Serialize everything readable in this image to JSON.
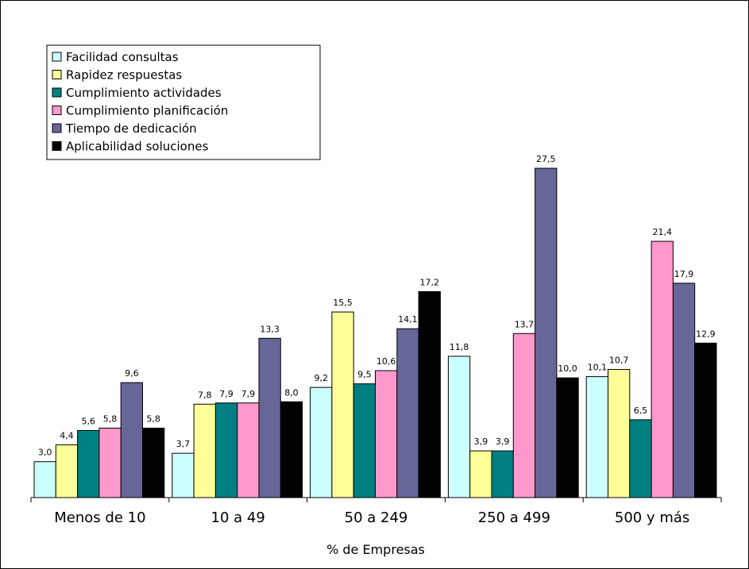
{
  "chart_data": {
    "type": "bar",
    "categories": [
      "Menos de 10",
      "10 a 49",
      "50 a 249",
      "250 a 499",
      "500 y más"
    ],
    "xlabel": "% de Empresas",
    "ylabel": "",
    "title": "",
    "ylim": [
      0,
      30
    ],
    "grid": false,
    "legend_position": "top-left",
    "series": [
      {
        "name": "Facilidad consultas",
        "color": "#ccffff",
        "values": [
          3.0,
          3.7,
          9.2,
          11.8,
          10.1
        ],
        "labels": [
          "3,0",
          "3,7",
          "9,2",
          "11,8",
          "10,1"
        ]
      },
      {
        "name": "Rapidez respuestas",
        "color": "#ffff99",
        "values": [
          4.4,
          7.8,
          15.5,
          3.9,
          10.7
        ],
        "labels": [
          "4,4",
          "7,8",
          "15,5",
          "3,9",
          "10,7"
        ]
      },
      {
        "name": "Cumplimiento actividades",
        "color": "#008080",
        "values": [
          5.6,
          7.9,
          9.5,
          3.9,
          6.5
        ],
        "labels": [
          "5,6",
          "7,9",
          "9,5",
          "3,9",
          "6,5"
        ]
      },
      {
        "name": "Cumplimiento planificación",
        "color": "#ff99cc",
        "values": [
          5.8,
          7.9,
          10.6,
          13.7,
          21.4
        ],
        "labels": [
          "5,8",
          "7,9",
          "10,6",
          "13,7",
          "21,4"
        ]
      },
      {
        "name": "Tiempo de dedicación",
        "color": "#666699",
        "values": [
          9.6,
          13.3,
          14.1,
          27.5,
          17.9
        ],
        "labels": [
          "9,6",
          "13,3",
          "14,1",
          "27,5",
          "17,9"
        ]
      },
      {
        "name": "Aplicabilidad soluciones",
        "color": "#000000",
        "values": [
          5.8,
          8.0,
          17.2,
          10.0,
          12.9
        ],
        "labels": [
          "5,8",
          "8,0",
          "17,2",
          "10,0",
          "12,9"
        ]
      }
    ]
  }
}
